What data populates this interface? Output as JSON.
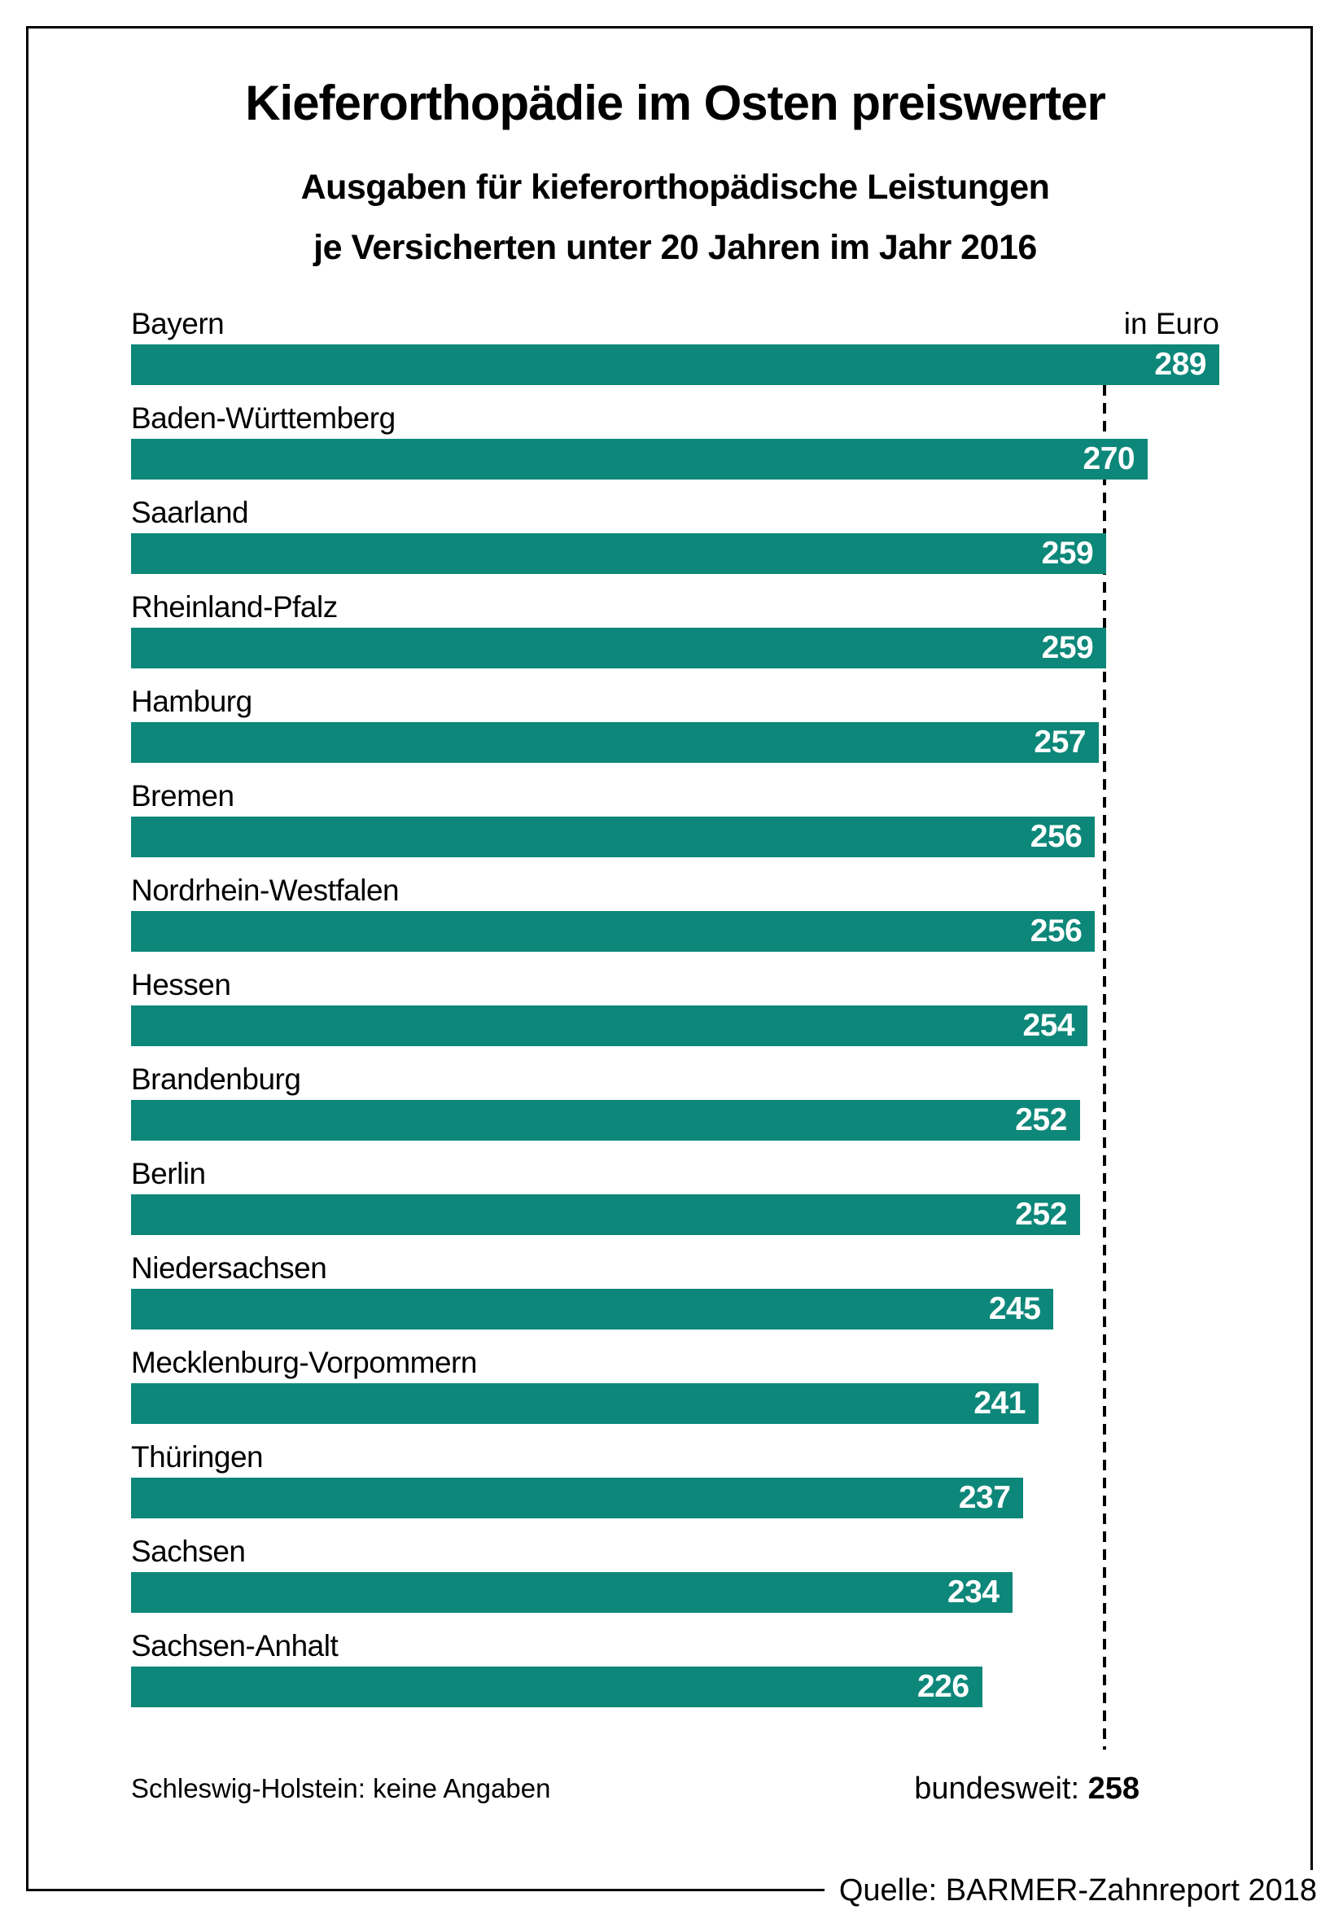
{
  "page": {
    "title": "Kieferorthopädie im Osten preiswerter",
    "subtitle1": "Ausgaben für kieferorthopädische Leistungen",
    "subtitle2": "je Versicherten unter 20 Jahren im Jahr 2016",
    "unit_label": "in Euro",
    "footnote": "Schleswig-Holstein: keine Angaben",
    "national_label": "bundesweit:",
    "national_value": "258",
    "source": "Quelle: BARMER-Zahnreport 2018"
  },
  "colors": {
    "bar": "#0d8779",
    "value_text": "#ffffff",
    "text": "#000000",
    "frame_border": "#000000",
    "reference_line": "#000000",
    "background": "#ffffff"
  },
  "chart_data": {
    "type": "bar",
    "orientation": "horizontal",
    "title": "Kieferorthopädie im Osten preiswerter",
    "subtitle": "Ausgaben für kieferorthopädische Leistungen je Versicherten unter 20 Jahren im Jahr 2016",
    "unit": "Euro",
    "xlim": [
      0,
      289
    ],
    "grid": false,
    "value_labels": "inside-end",
    "categories": [
      "Bayern",
      "Baden-Württemberg",
      "Saarland",
      "Rheinland-Pfalz",
      "Hamburg",
      "Bremen",
      "Nordrhein-Westfalen",
      "Hessen",
      "Brandenburg",
      "Berlin",
      "Niedersachsen",
      "Mecklenburg-Vorpommern",
      "Thüringen",
      "Sachsen",
      "Sachsen-Anhalt"
    ],
    "values": [
      289,
      270,
      259,
      259,
      257,
      256,
      256,
      254,
      252,
      252,
      245,
      241,
      237,
      234,
      226
    ],
    "reference_line": {
      "label": "bundesweit",
      "value": 258,
      "style": "dashed"
    },
    "no_data_note": "Schleswig-Holstein: keine Angaben",
    "source": "Quelle: BARMER-Zahnreport 2018"
  }
}
